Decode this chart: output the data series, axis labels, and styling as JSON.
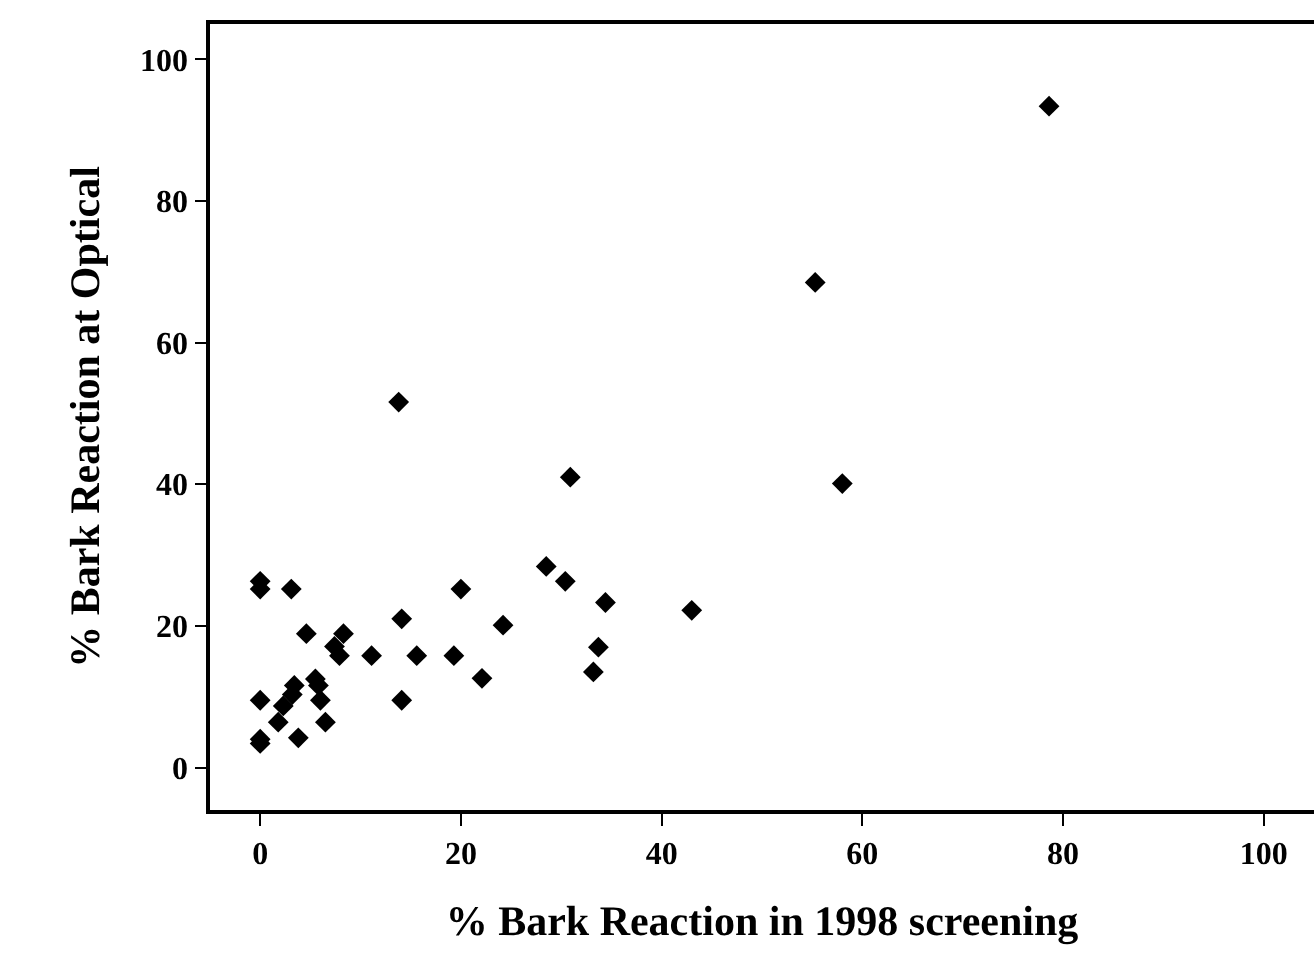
{
  "chart_data": {
    "type": "scatter",
    "xlabel": "% Bark Reaction in 1998 screening",
    "ylabel": "% Bark Reaction at Optical",
    "marker": "diamond",
    "grid": false,
    "xlim": [
      -5,
      105
    ],
    "ylim": [
      -6,
      105
    ],
    "xticks": [
      0,
      20,
      40,
      60,
      80,
      100
    ],
    "yticks": [
      0,
      20,
      40,
      60,
      80,
      100
    ],
    "series": [
      {
        "color": "#000000",
        "x": [
          78.6,
          55.3,
          58.0,
          13.8,
          30.9,
          28.5,
          30.4,
          34.4,
          43.0,
          33.7,
          33.2,
          24.2,
          20.0,
          22.1,
          19.3,
          15.6,
          14.1,
          14.1,
          11.1,
          8.3,
          7.4,
          7.9,
          4.6,
          3.1,
          0,
          0,
          0,
          0,
          0,
          1.8,
          2.3,
          3.2,
          3.4,
          3.8,
          5.5,
          5.8,
          6.0,
          6.5
        ],
        "values": [
          93.4,
          68.5,
          40.1,
          51.6,
          41.0,
          28.4,
          26.3,
          23.3,
          22.2,
          17.0,
          13.5,
          20.1,
          25.2,
          12.6,
          15.8,
          15.8,
          21.0,
          9.5,
          15.8,
          18.9,
          17.1,
          15.8,
          18.9,
          25.2,
          26.3,
          25.2,
          9.5,
          4.0,
          3.4,
          6.4,
          8.7,
          10.3,
          11.6,
          4.2,
          12.5,
          11.6,
          9.5,
          6.4
        ]
      }
    ]
  }
}
